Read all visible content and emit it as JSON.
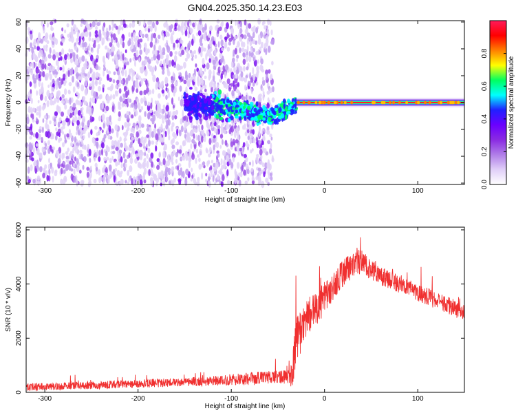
{
  "figure_title": "GN04.2025.350.14.23.E03",
  "colors": {
    "snr_line": "#f03030",
    "axes": "#000000",
    "background": "#ffffff"
  },
  "chart_data": [
    {
      "type": "heatmap",
      "name": "spectrogram",
      "title": "GN04.2025.350.14.23.E03",
      "xlabel": "Height of straight line (km)",
      "ylabel": "Frequency (Hz)",
      "xlim": [
        -320,
        150
      ],
      "ylim": [
        -61,
        61
      ],
      "xticks": [
        -300,
        -200,
        -100,
        0,
        100
      ],
      "yticks": [
        -60,
        -40,
        -20,
        0,
        20,
        40,
        60
      ],
      "colorbar": {
        "label": "Normalized spectral amplitude",
        "range": [
          0,
          1
        ],
        "ticks": [
          "0.0",
          "0.2",
          "0.4",
          "0.6",
          "0.8"
        ],
        "colormap": [
          "#ffffff",
          "#e0cff8",
          "#b07ee8",
          "#8a2be2",
          "#6a00ff",
          "#2020ff",
          "#00ffff",
          "#00ff60",
          "#ffff00",
          "#ff8000",
          "#ff0000",
          "#ff1a5a"
        ]
      },
      "features": {
        "noise_region_km": [
          -320,
          -55
        ],
        "noise_amplitude": 0.12,
        "transition_region_km": [
          -150,
          -30
        ],
        "transition_center_hz": [
          [
            -150,
            0
          ],
          [
            -100,
            -4
          ],
          [
            -75,
            -8
          ],
          [
            -60,
            -10
          ],
          [
            -45,
            -6
          ],
          [
            -30,
            -1
          ],
          [
            -20,
            0
          ]
        ],
        "tone_region_km": [
          -30,
          150
        ],
        "tone_frequency_hz": 0,
        "tone_amplitude": 1.0
      }
    },
    {
      "type": "line",
      "name": "snr",
      "xlabel": "Height of straight line (km)",
      "ylabel": "SNR (10 * v/v)",
      "xlim": [
        -320,
        150
      ],
      "ylim": [
        0,
        6100
      ],
      "xticks": [
        -300,
        -200,
        -100,
        0,
        100
      ],
      "yticks": [
        0,
        2000,
        4000,
        6000
      ],
      "series": [
        {
          "name": "SNR",
          "x": [
            -320,
            -300,
            -250,
            -200,
            -150,
            -120,
            -100,
            -80,
            -60,
            -45,
            -38,
            -35,
            -30,
            -20,
            -10,
            0,
            10,
            20,
            30,
            35,
            40,
            50,
            60,
            80,
            100,
            120,
            140,
            150
          ],
          "mean": [
            200,
            210,
            260,
            320,
            380,
            420,
            470,
            500,
            540,
            560,
            580,
            900,
            1900,
            2700,
            3000,
            3500,
            4000,
            4400,
            4700,
            4850,
            4800,
            4550,
            4300,
            4000,
            3700,
            3400,
            3100,
            2900
          ],
          "spread": [
            280,
            280,
            290,
            300,
            320,
            360,
            420,
            470,
            500,
            500,
            520,
            1600,
            1700,
            1500,
            1300,
            1200,
            1100,
            1000,
            1000,
            1000,
            900,
            800,
            700,
            650,
            650,
            650,
            650,
            650
          ]
        }
      ]
    }
  ]
}
